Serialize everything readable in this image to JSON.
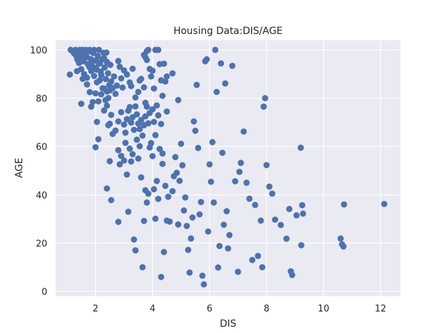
{
  "chart_data": {
    "type": "scatter",
    "title": "Housing Data:DIS/AGE",
    "xlabel": "DIS",
    "ylabel": "AGE",
    "xlim": [
      0.6,
      12.7
    ],
    "ylim": [
      -2,
      104
    ],
    "xticks": [
      2,
      4,
      6,
      8,
      10,
      12
    ],
    "yticks": [
      0,
      20,
      40,
      60,
      80,
      100
    ],
    "grid": true,
    "colors": {
      "background": "#eaeaf2",
      "grid": "#ffffff",
      "point": "#4c72b0"
    },
    "series": [
      {
        "points": [
          [
            1.13,
            100
          ],
          [
            1.2,
            99.4
          ],
          [
            1.25,
            98.5
          ],
          [
            1.3,
            100
          ],
          [
            1.33,
            97.3
          ],
          [
            1.36,
            96.0
          ],
          [
            1.4,
            99.1
          ],
          [
            1.45,
            100
          ],
          [
            1.48,
            98.8
          ],
          [
            1.52,
            96.7
          ],
          [
            1.55,
            100
          ],
          [
            1.58,
            95.3
          ],
          [
            1.62,
            98.2
          ],
          [
            1.66,
            100
          ],
          [
            1.7,
            97.0
          ],
          [
            1.73,
            94.1
          ],
          [
            1.77,
            99.4
          ],
          [
            1.8,
            100
          ],
          [
            1.84,
            96.2
          ],
          [
            1.88,
            93.3
          ],
          [
            1.92,
            98.7
          ],
          [
            1.96,
            100
          ],
          [
            2.0,
            95.6
          ],
          [
            2.04,
            91.8
          ],
          [
            2.08,
            97.5
          ],
          [
            2.12,
            100
          ],
          [
            2.16,
            94.4
          ],
          [
            2.2,
            89.6
          ],
          [
            2.24,
            96.1
          ],
          [
            2.28,
            98.8
          ],
          [
            2.32,
            92.7
          ],
          [
            2.36,
            87.9
          ],
          [
            2.4,
            95.0
          ],
          [
            2.44,
            90.3
          ],
          [
            2.48,
            85.4
          ],
          [
            2.52,
            93.8
          ],
          [
            1.5,
            92.0
          ],
          [
            1.6,
            90.0
          ],
          [
            1.7,
            88.5
          ],
          [
            1.85,
            91.3
          ],
          [
            1.95,
            89.2
          ],
          [
            2.05,
            86.6
          ],
          [
            2.15,
            87.4
          ],
          [
            2.25,
            84.1
          ],
          [
            1.42,
            94.6
          ],
          [
            1.65,
            96.9
          ],
          [
            1.78,
            93.0
          ],
          [
            1.9,
            95.2
          ],
          [
            2.02,
            92.6
          ],
          [
            2.1,
            94.8
          ],
          [
            2.18,
            91.0
          ],
          [
            2.3,
            96.6
          ],
          [
            2.38,
            98.9
          ],
          [
            1.1,
            89.8
          ],
          [
            1.35,
            91.2
          ],
          [
            1.55,
            88.0
          ],
          [
            1.7,
            85.7
          ],
          [
            1.5,
            77.7
          ],
          [
            1.8,
            82.5
          ],
          [
            1.85,
            76.5
          ],
          [
            1.9,
            78.4
          ],
          [
            2.0,
            82.0
          ],
          [
            2.1,
            78.7
          ],
          [
            2.2,
            81.6
          ],
          [
            2.3,
            84.0
          ],
          [
            2.35,
            79.2
          ],
          [
            2.4,
            82.8
          ],
          [
            2.45,
            80.1
          ],
          [
            2.5,
            83.2
          ],
          [
            2.55,
            86.9
          ],
          [
            2.6,
            84.2
          ],
          [
            2.65,
            89.0
          ],
          [
            2.7,
            81.8
          ],
          [
            2.75,
            85.2
          ],
          [
            2.8,
            95.4
          ],
          [
            2.85,
            93.0
          ],
          [
            2.9,
            88.2
          ],
          [
            2.95,
            84.4
          ],
          [
            3.0,
            91.5
          ],
          [
            3.1,
            89.8
          ],
          [
            3.2,
            86.5
          ],
          [
            3.25,
            85.0
          ],
          [
            3.3,
            92.2
          ],
          [
            3.4,
            80.3
          ],
          [
            3.5,
            82.6
          ],
          [
            3.55,
            87.3
          ],
          [
            3.6,
            88.0
          ],
          [
            3.7,
            84.5
          ],
          [
            3.75,
            78.1
          ],
          [
            3.8,
            99.5
          ],
          [
            3.85,
            100
          ],
          [
            3.9,
            92.1
          ],
          [
            3.95,
            89.0
          ],
          [
            4.0,
            91.4
          ],
          [
            4.05,
            84.0
          ],
          [
            4.1,
            100
          ],
          [
            4.2,
            100
          ],
          [
            4.25,
            94.1
          ],
          [
            4.3,
            87.4
          ],
          [
            4.35,
            81.0
          ],
          [
            4.4,
            94.3
          ],
          [
            4.45,
            86.9
          ],
          [
            4.5,
            89.0
          ],
          [
            4.7,
            90.3
          ],
          [
            4.9,
            79.2
          ],
          [
            3.7,
            97.9
          ],
          [
            3.75,
            97.0
          ],
          [
            3.8,
            95.8
          ],
          [
            2.1,
            63.0
          ],
          [
            2.0,
            59.7
          ],
          [
            2.05,
            70.2
          ],
          [
            2.3,
            74.9
          ],
          [
            2.4,
            76.9
          ],
          [
            2.45,
            68.8
          ],
          [
            2.5,
            69.4
          ],
          [
            2.55,
            73.1
          ],
          [
            2.6,
            65.2
          ],
          [
            2.7,
            66.6
          ],
          [
            2.8,
            70.4
          ],
          [
            2.9,
            74.2
          ],
          [
            3.0,
            69.1
          ],
          [
            3.05,
            65.7
          ],
          [
            3.1,
            71.3
          ],
          [
            3.15,
            74.8
          ],
          [
            3.2,
            76.3
          ],
          [
            3.25,
            69.9
          ],
          [
            3.3,
            72.1
          ],
          [
            3.35,
            66.9
          ],
          [
            3.4,
            76.6
          ],
          [
            3.45,
            73.3
          ],
          [
            3.5,
            69.5
          ],
          [
            3.55,
            67.2
          ],
          [
            3.6,
            71.0
          ],
          [
            3.65,
            64.5
          ],
          [
            3.7,
            68.8
          ],
          [
            3.75,
            72.5
          ],
          [
            3.8,
            76.5
          ],
          [
            3.85,
            69.6
          ],
          [
            3.9,
            73.9
          ],
          [
            4.0,
            75.4
          ],
          [
            4.05,
            70.2
          ],
          [
            4.1,
            64.7
          ],
          [
            4.15,
            77.0
          ],
          [
            4.2,
            72.9
          ],
          [
            4.3,
            69.3
          ],
          [
            4.35,
            57.1
          ],
          [
            4.5,
            74.5
          ],
          [
            2.4,
            42.6
          ],
          [
            2.5,
            53.9
          ],
          [
            2.55,
            37.8
          ],
          [
            2.8,
            28.8
          ],
          [
            2.8,
            58.5
          ],
          [
            2.85,
            52.6
          ],
          [
            2.9,
            56.1
          ],
          [
            3.0,
            54.2
          ],
          [
            3.05,
            61.5
          ],
          [
            3.1,
            48.4
          ],
          [
            3.15,
            33.0
          ],
          [
            3.2,
            59.1
          ],
          [
            3.25,
            53.8
          ],
          [
            3.3,
            56.8
          ],
          [
            3.35,
            21.5
          ],
          [
            3.4,
            17.0
          ],
          [
            3.45,
            62.8
          ],
          [
            3.5,
            55.0
          ],
          [
            3.55,
            60.1
          ],
          [
            3.6,
            47.2
          ],
          [
            3.65,
            10.0
          ],
          [
            3.7,
            29.2
          ],
          [
            3.75,
            41.9
          ],
          [
            3.8,
            36.8
          ],
          [
            3.85,
            40.5
          ],
          [
            3.9,
            59.6
          ],
          [
            3.95,
            61.4
          ],
          [
            4.0,
            56.0
          ],
          [
            4.05,
            42.3
          ],
          [
            4.1,
            30.1
          ],
          [
            4.15,
            45.7
          ],
          [
            4.2,
            38.3
          ],
          [
            4.25,
            59.0
          ],
          [
            4.3,
            6.0
          ],
          [
            4.35,
            52.8
          ],
          [
            4.4,
            16.3
          ],
          [
            4.45,
            43.7
          ],
          [
            4.5,
            29.3
          ],
          [
            4.55,
            39.2
          ],
          [
            4.6,
            28.9
          ],
          [
            4.7,
            41.5
          ],
          [
            4.75,
            47.7
          ],
          [
            4.8,
            55.6
          ],
          [
            4.85,
            49.1
          ],
          [
            4.9,
            27.7
          ],
          [
            4.95,
            45.8
          ],
          [
            5.0,
            61.1
          ],
          [
            5.05,
            52.2
          ],
          [
            5.1,
            33.5
          ],
          [
            5.15,
            38.9
          ],
          [
            5.2,
            27.1
          ],
          [
            5.25,
            17.2
          ],
          [
            5.3,
            7.8
          ],
          [
            5.35,
            21.9
          ],
          [
            5.4,
            30.6
          ],
          [
            5.45,
            70.4
          ],
          [
            5.5,
            66.5
          ],
          [
            5.55,
            85.5
          ],
          [
            5.6,
            59.4
          ],
          [
            5.65,
            31.9
          ],
          [
            5.7,
            37.0
          ],
          [
            5.75,
            6.5
          ],
          [
            5.8,
            2.9
          ],
          [
            5.85,
            95.3
          ],
          [
            5.9,
            96.1
          ],
          [
            5.95,
            24.8
          ],
          [
            6.0,
            52.6
          ],
          [
            6.05,
            45.4
          ],
          [
            6.1,
            61.8
          ],
          [
            6.15,
            36.8
          ],
          [
            6.2,
            100
          ],
          [
            6.25,
            82.6
          ],
          [
            6.3,
            9.9
          ],
          [
            6.35,
            18.8
          ],
          [
            6.4,
            94.4
          ],
          [
            6.45,
            57.4
          ],
          [
            6.5,
            27.6
          ],
          [
            6.55,
            86.1
          ],
          [
            6.6,
            33.2
          ],
          [
            6.65,
            17.8
          ],
          [
            6.7,
            23.3
          ],
          [
            6.8,
            93.4
          ],
          [
            6.9,
            45.6
          ],
          [
            7.0,
            8.1
          ],
          [
            7.05,
            49.5
          ],
          [
            7.1,
            53.2
          ],
          [
            7.2,
            66.2
          ],
          [
            7.3,
            45.0
          ],
          [
            7.4,
            38.4
          ],
          [
            7.5,
            13.0
          ],
          [
            7.6,
            35.8
          ],
          [
            7.7,
            14.7
          ],
          [
            7.8,
            29.3
          ],
          [
            7.85,
            10.0
          ],
          [
            7.9,
            76.5
          ],
          [
            7.95,
            80.0
          ],
          [
            8.0,
            52.3
          ],
          [
            8.1,
            43.4
          ],
          [
            8.2,
            40.5
          ],
          [
            8.3,
            29.7
          ],
          [
            8.5,
            27.5
          ],
          [
            8.7,
            21.8
          ],
          [
            8.8,
            34.1
          ],
          [
            8.85,
            8.3
          ],
          [
            8.9,
            6.8
          ],
          [
            9.05,
            31.5
          ],
          [
            9.2,
            59.5
          ],
          [
            9.22,
            19.1
          ],
          [
            9.25,
            35.7
          ],
          [
            9.28,
            32.2
          ],
          [
            10.6,
            21.9
          ],
          [
            10.65,
            19.5
          ],
          [
            10.7,
            18.6
          ],
          [
            10.72,
            36.0
          ],
          [
            12.13,
            36.2
          ]
        ]
      }
    ]
  }
}
